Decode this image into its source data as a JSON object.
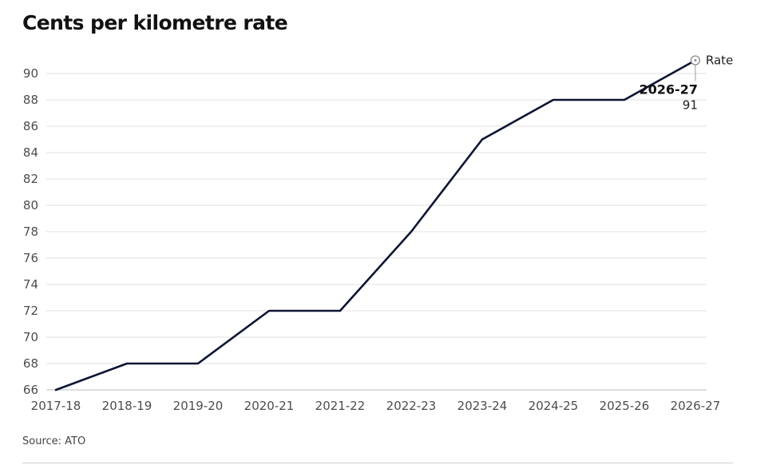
{
  "chart_data": {
    "type": "line",
    "title": "Cents per kilometre rate",
    "xlabel": "",
    "ylabel": "",
    "categories": [
      "2017-18",
      "2018-19",
      "2019-20",
      "2020-21",
      "2021-22",
      "2022-23",
      "2023-24",
      "2024-25",
      "2025-26",
      "2026-27"
    ],
    "series": [
      {
        "name": "Rate",
        "values": [
          66,
          68,
          68,
          72,
          72,
          78,
          85,
          88,
          88,
          91
        ],
        "color": "#0d1433"
      }
    ],
    "ylim": [
      66,
      91
    ],
    "yticks": [
      66,
      68,
      70,
      72,
      74,
      76,
      78,
      80,
      82,
      84,
      86,
      88,
      90
    ],
    "grid": true,
    "legend": "top-right",
    "annotation": {
      "label": "2026-27",
      "value": "91"
    }
  },
  "source": "Source: ATO",
  "colors": {
    "line": "#0d1433",
    "grid": "#e2e2e2",
    "axis": "#bdbdbd"
  }
}
